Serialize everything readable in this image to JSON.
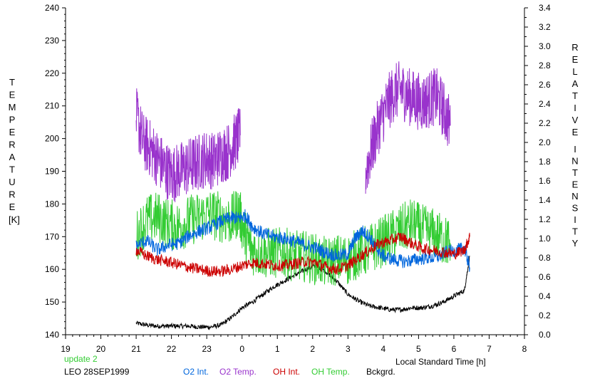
{
  "chart_data": {
    "type": "line",
    "y_left": {
      "label_chars": [
        "T",
        "E",
        "M",
        "P",
        "E",
        "R",
        "A",
        "T",
        "U",
        "R",
        "E"
      ],
      "unit": "[K]",
      "range": [
        140,
        240
      ],
      "ticks": [
        140,
        150,
        160,
        170,
        180,
        190,
        200,
        210,
        220,
        230,
        240
      ]
    },
    "y_right": {
      "label_chars": [
        "R",
        "E",
        "L",
        "A",
        "T",
        "I",
        "V",
        "E"
      ],
      "label_chars_2": [
        "I",
        "N",
        "T",
        "E",
        "N",
        "S",
        "I",
        "T",
        "Y"
      ],
      "range": [
        0.0,
        3.4
      ],
      "ticks": [
        "0.0",
        "0.2",
        "0.4",
        "0.6",
        "0.8",
        "1.0",
        "1.2",
        "1.4",
        "1.6",
        "1.8",
        "2.0",
        "2.2",
        "2.4",
        "2.6",
        "2.8",
        "3.0",
        "3.2",
        "3.4"
      ]
    },
    "x_axis": {
      "label": "Local Standard Time [h]",
      "ticks": [
        "19",
        "20",
        "21",
        "22",
        "23",
        "0",
        "1",
        "2",
        "3",
        "4",
        "5",
        "6",
        "7",
        "8"
      ]
    },
    "grid": false,
    "legend_position": "bottom",
    "update_note": "update 2",
    "station": "LEO 28SEP1999",
    "series": [
      {
        "name": "O2 Int.",
        "color": "#0066dd",
        "axis": "right",
        "points": [
          [
            21.0,
            0.92
          ],
          [
            21.3,
            0.98
          ],
          [
            21.6,
            0.88
          ],
          [
            21.9,
            0.93
          ],
          [
            22.2,
            0.95
          ],
          [
            22.5,
            1.03
          ],
          [
            22.8,
            1.08
          ],
          [
            23.1,
            1.12
          ],
          [
            23.4,
            1.18
          ],
          [
            23.7,
            1.22
          ],
          [
            23.9,
            1.21
          ],
          [
            0.1,
            1.24
          ],
          [
            0.3,
            1.12
          ],
          [
            0.6,
            1.05
          ],
          [
            0.9,
            1.02
          ],
          [
            1.2,
            1.0
          ],
          [
            1.5,
            0.97
          ],
          [
            1.8,
            0.93
          ],
          [
            2.1,
            0.9
          ],
          [
            2.4,
            0.85
          ],
          [
            2.7,
            0.82
          ],
          [
            3.0,
            0.84
          ],
          [
            3.2,
            1.0
          ],
          [
            3.4,
            1.08
          ],
          [
            3.6,
            1.02
          ],
          [
            3.8,
            0.9
          ],
          [
            4.0,
            0.82
          ],
          [
            4.3,
            0.78
          ],
          [
            4.6,
            0.76
          ],
          [
            4.9,
            0.78
          ],
          [
            5.2,
            0.8
          ],
          [
            5.5,
            0.8
          ],
          [
            5.8,
            0.86
          ],
          [
            6.1,
            0.88
          ],
          [
            6.3,
            0.9
          ],
          [
            6.45,
            0.7
          ]
        ]
      },
      {
        "name": "O2 Temp.",
        "color": "#9933cc",
        "axis": "left",
        "segments": [
          [
            [
              21.0,
              207
            ],
            [
              21.2,
              199
            ],
            [
              21.4,
              197
            ],
            [
              21.6,
              194
            ],
            [
              21.8,
              191
            ],
            [
              22.0,
              189
            ],
            [
              22.2,
              190
            ],
            [
              22.4,
              191
            ],
            [
              22.6,
              192
            ],
            [
              22.8,
              193
            ],
            [
              23.0,
              194
            ],
            [
              23.2,
              193
            ],
            [
              23.4,
              195
            ],
            [
              23.6,
              196
            ],
            [
              23.8,
              199
            ],
            [
              23.95,
              201
            ]
          ],
          [
            [
              3.5,
              190
            ],
            [
              3.7,
              198
            ],
            [
              3.9,
              205
            ],
            [
              4.1,
              210
            ],
            [
              4.3,
              214
            ],
            [
              4.5,
              215
            ],
            [
              4.7,
              213
            ],
            [
              4.9,
              212
            ],
            [
              5.1,
              211
            ],
            [
              5.3,
              212
            ],
            [
              5.5,
              213
            ],
            [
              5.7,
              209
            ],
            [
              5.9,
              204
            ]
          ]
        ]
      },
      {
        "name": "OH Int.",
        "color": "#cc0000",
        "axis": "right",
        "points": [
          [
            21.0,
            0.88
          ],
          [
            21.3,
            0.82
          ],
          [
            21.6,
            0.78
          ],
          [
            21.9,
            0.76
          ],
          [
            22.2,
            0.73
          ],
          [
            22.5,
            0.7
          ],
          [
            22.8,
            0.68
          ],
          [
            23.1,
            0.66
          ],
          [
            23.4,
            0.66
          ],
          [
            23.7,
            0.68
          ],
          [
            0.0,
            0.72
          ],
          [
            0.3,
            0.75
          ],
          [
            0.6,
            0.74
          ],
          [
            0.9,
            0.72
          ],
          [
            1.2,
            0.72
          ],
          [
            1.5,
            0.74
          ],
          [
            1.8,
            0.76
          ],
          [
            2.1,
            0.75
          ],
          [
            2.4,
            0.7
          ],
          [
            2.7,
            0.68
          ],
          [
            3.0,
            0.72
          ],
          [
            3.3,
            0.8
          ],
          [
            3.6,
            0.88
          ],
          [
            3.9,
            0.95
          ],
          [
            4.2,
            0.98
          ],
          [
            4.5,
            1.02
          ],
          [
            4.8,
            0.95
          ],
          [
            5.1,
            0.9
          ],
          [
            5.4,
            0.88
          ],
          [
            5.7,
            0.86
          ],
          [
            6.0,
            0.84
          ],
          [
            6.3,
            0.88
          ],
          [
            6.45,
            1.02
          ]
        ]
      },
      {
        "name": "OH Temp.",
        "color": "#33cc33",
        "axis": "left",
        "points": [
          [
            21.0,
            170
          ],
          [
            21.3,
            175
          ],
          [
            21.6,
            176
          ],
          [
            21.9,
            174
          ],
          [
            22.2,
            173
          ],
          [
            22.5,
            175
          ],
          [
            22.8,
            176
          ],
          [
            23.1,
            177
          ],
          [
            23.4,
            176
          ],
          [
            23.7,
            175
          ],
          [
            23.9,
            178
          ],
          [
            0.1,
            170
          ],
          [
            0.3,
            166
          ],
          [
            0.6,
            165
          ],
          [
            0.9,
            165
          ],
          [
            1.2,
            165
          ],
          [
            1.5,
            164
          ],
          [
            1.8,
            164
          ],
          [
            2.1,
            163
          ],
          [
            2.4,
            162
          ],
          [
            2.7,
            163
          ],
          [
            3.0,
            163
          ],
          [
            3.3,
            165
          ],
          [
            3.6,
            166
          ],
          [
            3.9,
            168
          ],
          [
            4.2,
            170
          ],
          [
            4.5,
            172
          ],
          [
            4.8,
            174
          ],
          [
            5.1,
            172
          ],
          [
            5.4,
            171
          ],
          [
            5.7,
            169
          ],
          [
            5.9,
            168
          ]
        ]
      },
      {
        "name": "Bckgrd.",
        "color": "#000000",
        "axis": "right",
        "points": [
          [
            21.0,
            0.12
          ],
          [
            21.3,
            0.1
          ],
          [
            21.6,
            0.09
          ],
          [
            21.9,
            0.09
          ],
          [
            22.2,
            0.09
          ],
          [
            22.5,
            0.09
          ],
          [
            22.8,
            0.08
          ],
          [
            23.1,
            0.08
          ],
          [
            23.4,
            0.1
          ],
          [
            23.7,
            0.18
          ],
          [
            0.0,
            0.28
          ],
          [
            0.3,
            0.34
          ],
          [
            0.6,
            0.42
          ],
          [
            0.9,
            0.5
          ],
          [
            1.2,
            0.56
          ],
          [
            1.5,
            0.62
          ],
          [
            1.8,
            0.68
          ],
          [
            2.1,
            0.72
          ],
          [
            2.4,
            0.65
          ],
          [
            2.7,
            0.55
          ],
          [
            3.0,
            0.42
          ],
          [
            3.3,
            0.35
          ],
          [
            3.6,
            0.3
          ],
          [
            3.9,
            0.28
          ],
          [
            4.2,
            0.26
          ],
          [
            4.5,
            0.26
          ],
          [
            4.8,
            0.28
          ],
          [
            5.1,
            0.28
          ],
          [
            5.4,
            0.3
          ],
          [
            5.7,
            0.34
          ],
          [
            6.0,
            0.4
          ],
          [
            6.3,
            0.46
          ],
          [
            6.45,
            0.82
          ]
        ]
      }
    ]
  }
}
